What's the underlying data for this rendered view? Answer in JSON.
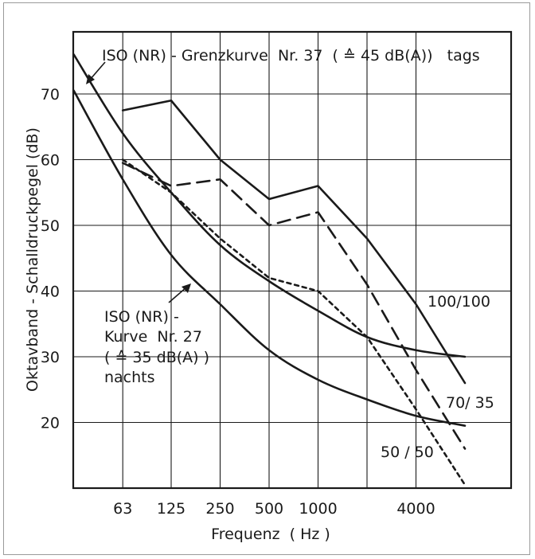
{
  "chart_data": {
    "type": "line",
    "xlabel": "Frequenz  ( Hz )",
    "ylabel": "Oktavband - Schalldruckpegel (dB)",
    "x_scale": "log2 (octave bands)",
    "x_ticks": [
      "63",
      "125",
      "250",
      "500",
      "1000",
      "4000"
    ],
    "y_ticks": [
      20,
      30,
      40,
      50,
      60,
      70
    ],
    "ylim": [
      13,
      82
    ],
    "grid": true,
    "annotations": {
      "iso37": "ISO (NR) - Grenzkurve  Nr. 37  ( ≙ 45 dB(A))   tags",
      "iso27": [
        "ISO (NR) -",
        "Kurve  Nr. 27",
        "( ≙ 35 dB(A) )",
        "nachts"
      ],
      "label_100_100": "100/100",
      "label_70_35": "70/ 35",
      "label_50_50": "50 / 50"
    },
    "series": [
      {
        "key": "iso37",
        "style": "solid",
        "points": [
          [
            31.5,
            76
          ],
          [
            63,
            64
          ],
          [
            125,
            55
          ],
          [
            250,
            47
          ],
          [
            500,
            41.5
          ],
          [
            1000,
            37
          ],
          [
            2000,
            33
          ],
          [
            4000,
            31
          ],
          [
            8000,
            30
          ]
        ]
      },
      {
        "key": "iso27",
        "style": "solid",
        "points": [
          [
            31.5,
            70.5
          ],
          [
            63,
            57
          ],
          [
            125,
            45.5
          ],
          [
            250,
            38
          ],
          [
            500,
            31
          ],
          [
            1000,
            26.5
          ],
          [
            2000,
            23.5
          ],
          [
            4000,
            21
          ],
          [
            8000,
            19.5
          ]
        ]
      },
      {
        "key": "100/100",
        "style": "solid",
        "points": [
          [
            63,
            67.5
          ],
          [
            125,
            69
          ],
          [
            250,
            60
          ],
          [
            500,
            54
          ],
          [
            1000,
            56
          ],
          [
            2000,
            48
          ],
          [
            4000,
            38
          ],
          [
            8000,
            26
          ]
        ]
      },
      {
        "key": "70/35",
        "style": "dashed",
        "points": [
          [
            63,
            59.5
          ],
          [
            125,
            56
          ],
          [
            250,
            57
          ],
          [
            500,
            50
          ],
          [
            1000,
            52
          ],
          [
            2000,
            41
          ],
          [
            4000,
            28
          ],
          [
            8000,
            16
          ]
        ]
      },
      {
        "key": "50/50",
        "style": "dotted",
        "points": [
          [
            63,
            60
          ],
          [
            125,
            55
          ],
          [
            250,
            48
          ],
          [
            500,
            42
          ],
          [
            1000,
            40
          ],
          [
            2000,
            33
          ],
          [
            4000,
            22
          ],
          [
            8000,
            10.5
          ]
        ]
      }
    ]
  }
}
